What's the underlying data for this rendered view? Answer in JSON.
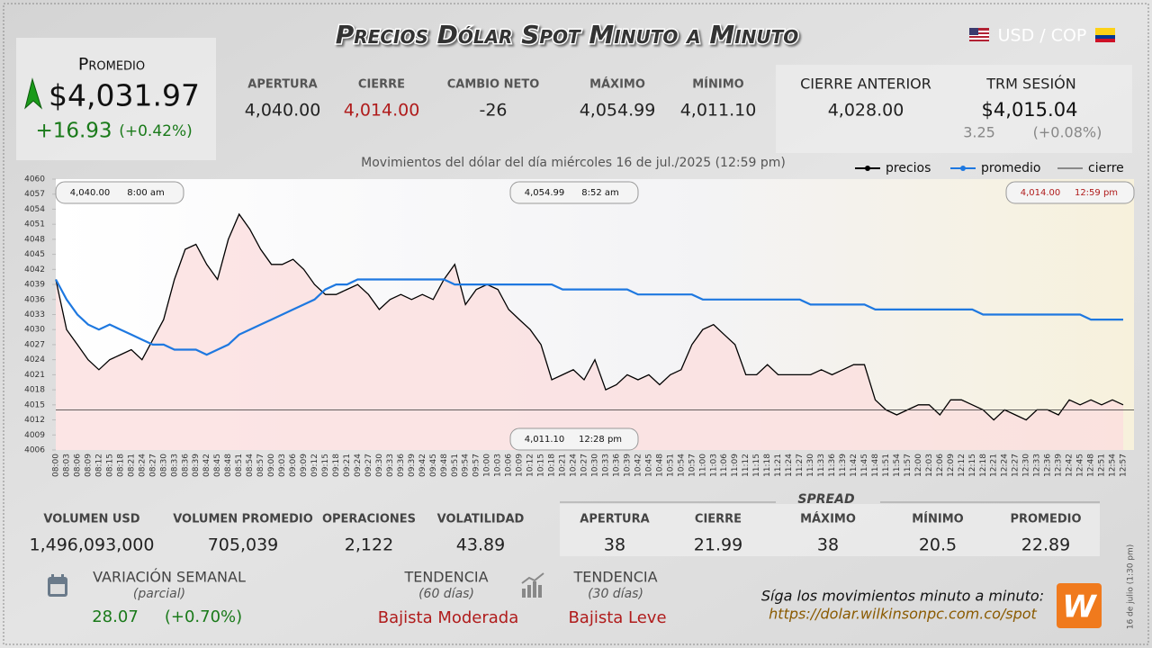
{
  "header": {
    "title": "Precios Dólar Spot Minuto a Minuto",
    "pair": "USD / COP"
  },
  "promedio": {
    "label": "Promedio",
    "value": "$4,031.97",
    "change": "+16.93",
    "change_pct": "(+0.42%)"
  },
  "summary": [
    {
      "label": "APERTURA",
      "value": "4,040.00"
    },
    {
      "label": "CIERRE",
      "value": "4,014.00"
    },
    {
      "label": "CAMBIO NETO",
      "value": "-26"
    },
    {
      "label": "MÁXIMO",
      "value": "4,054.99"
    },
    {
      "label": "MÍNIMO",
      "value": "4,011.10"
    }
  ],
  "previous": {
    "label": "CIERRE ANTERIOR",
    "value": "4,028.00"
  },
  "trm": {
    "label": "TRM SESIÓN",
    "value": "$4,015.04",
    "change": "3.25",
    "change_pct": "(+0.08%)"
  },
  "stats": [
    {
      "label": "VOLUMEN USD",
      "value": "1,496,093,000"
    },
    {
      "label": "VOLUMEN PROMEDIO",
      "value": "705,039"
    },
    {
      "label": "OPERACIONES",
      "value": "2,122"
    },
    {
      "label": "VOLATILIDAD",
      "value": "43.89"
    }
  ],
  "spread": {
    "title": "SPREAD",
    "items": [
      {
        "label": "APERTURA",
        "value": "38"
      },
      {
        "label": "CIERRE",
        "value": "21.99"
      },
      {
        "label": "MÁXIMO",
        "value": "38"
      },
      {
        "label": "MÍNIMO",
        "value": "20.5"
      },
      {
        "label": "PROMEDIO",
        "value": "22.89"
      }
    ]
  },
  "weekly": {
    "label": "VARIACIÓN SEMANAL",
    "sub": "(parcial)",
    "value": "28.07",
    "pct": "(+0.70%)"
  },
  "trend60": {
    "label": "TENDENCIA",
    "sub": "(60 días)",
    "value": "Bajista Moderada"
  },
  "trend30": {
    "label": "TENDENCIA",
    "sub": "(30 días)",
    "value": "Bajista Leve"
  },
  "footer": {
    "text": "Síga los movimientos minuto a minuto:",
    "url": "https://dolar.wilkinsonpc.com.co/spot",
    "stamp": "16 de julio (1:30 pm)",
    "logo": "W"
  },
  "chart_data": {
    "type": "line",
    "title": "Movimientos del dólar del día miércoles 16 de jul./2025 (12:59 pm)",
    "categories": [
      "08:00",
      "08:03",
      "08:06",
      "08:09",
      "08:12",
      "08:15",
      "08:18",
      "08:21",
      "08:24",
      "08:27",
      "08:30",
      "08:33",
      "08:36",
      "08:39",
      "08:42",
      "08:45",
      "08:48",
      "08:51",
      "08:54",
      "08:57",
      "09:00",
      "09:03",
      "09:06",
      "09:09",
      "09:12",
      "09:15",
      "09:18",
      "09:21",
      "09:24",
      "09:27",
      "09:30",
      "09:33",
      "09:36",
      "09:39",
      "09:42",
      "09:45",
      "09:48",
      "09:51",
      "09:54",
      "09:57",
      "10:00",
      "10:03",
      "10:06",
      "10:09",
      "10:12",
      "10:15",
      "10:18",
      "10:21",
      "10:24",
      "10:27",
      "10:30",
      "10:33",
      "10:36",
      "10:39",
      "10:42",
      "10:45",
      "10:48",
      "10:51",
      "10:54",
      "10:57",
      "11:00",
      "11:03",
      "11:06",
      "11:09",
      "11:12",
      "11:15",
      "11:18",
      "11:21",
      "11:24",
      "11:27",
      "11:30",
      "11:33",
      "11:36",
      "11:39",
      "11:42",
      "11:45",
      "11:48",
      "11:51",
      "11:54",
      "11:57",
      "12:00",
      "12:03",
      "12:06",
      "12:09",
      "12:12",
      "12:15",
      "12:18",
      "12:21",
      "12:24",
      "12:27",
      "12:30",
      "12:33",
      "12:36",
      "12:39",
      "12:42",
      "12:45",
      "12:48",
      "12:51",
      "12:54",
      "12:57"
    ],
    "series": [
      {
        "name": "precios",
        "color": "#000000",
        "values": [
          4040,
          4030,
          4027,
          4024,
          4022,
          4024,
          4025,
          4026,
          4024,
          4028,
          4032,
          4040,
          4046,
          4047,
          4043,
          4040,
          4048,
          4053,
          4050,
          4046,
          4043,
          4043,
          4044,
          4042,
          4039,
          4037,
          4037,
          4038,
          4039,
          4037,
          4034,
          4036,
          4037,
          4036,
          4037,
          4036,
          4040,
          4043,
          4035,
          4038,
          4039,
          4038,
          4034,
          4032,
          4030,
          4027,
          4020,
          4021,
          4022,
          4020,
          4024,
          4018,
          4019,
          4021,
          4020,
          4021,
          4019,
          4021,
          4022,
          4027,
          4030,
          4031,
          4029,
          4027,
          4021,
          4021,
          4023,
          4021,
          4021,
          4021,
          4021,
          4022,
          4021,
          4022,
          4023,
          4023,
          4016,
          4014,
          4013,
          4014,
          4015,
          4015,
          4013,
          4016,
          4016,
          4015,
          4014,
          4012,
          4014,
          4013,
          4012,
          4014,
          4014,
          4013,
          4016,
          4015,
          4016,
          4015,
          4016,
          4015
        ]
      },
      {
        "name": "promedio",
        "color": "#1e78e0",
        "values": [
          4040,
          4036,
          4033,
          4031,
          4030,
          4031,
          4030,
          4029,
          4028,
          4027,
          4027,
          4026,
          4026,
          4026,
          4025,
          4026,
          4027,
          4029,
          4030,
          4031,
          4032,
          4033,
          4034,
          4035,
          4036,
          4038,
          4039,
          4039,
          4040,
          4040,
          4040,
          4040,
          4040,
          4040,
          4040,
          4040,
          4040,
          4039,
          4039,
          4039,
          4039,
          4039,
          4039,
          4039,
          4039,
          4039,
          4039,
          4038,
          4038,
          4038,
          4038,
          4038,
          4038,
          4038,
          4037,
          4037,
          4037,
          4037,
          4037,
          4037,
          4036,
          4036,
          4036,
          4036,
          4036,
          4036,
          4036,
          4036,
          4036,
          4036,
          4035,
          4035,
          4035,
          4035,
          4035,
          4035,
          4034,
          4034,
          4034,
          4034,
          4034,
          4034,
          4034,
          4034,
          4034,
          4034,
          4033,
          4033,
          4033,
          4033,
          4033,
          4033,
          4033,
          4033,
          4033,
          4033,
          4032,
          4032,
          4032,
          4032
        ]
      }
    ],
    "reference_line": {
      "name": "cierre",
      "value": 4014,
      "color": "#333333"
    },
    "area_color": "#fbdede",
    "ylim": [
      4006,
      4060
    ],
    "yticks": [
      4006,
      4009,
      4012,
      4015,
      4018,
      4021,
      4024,
      4027,
      4030,
      4033,
      4036,
      4039,
      4042,
      4045,
      4048,
      4051,
      4054,
      4057,
      4060
    ],
    "grid": false,
    "annotations": [
      {
        "price": "4,040.00",
        "time": "8:00 am"
      },
      {
        "price": "4,054.99",
        "time": "8:52 am"
      },
      {
        "price": "4,014.00",
        "time": "12:59 pm"
      },
      {
        "price": "4,011.10",
        "time": "12:28 pm"
      }
    ]
  }
}
